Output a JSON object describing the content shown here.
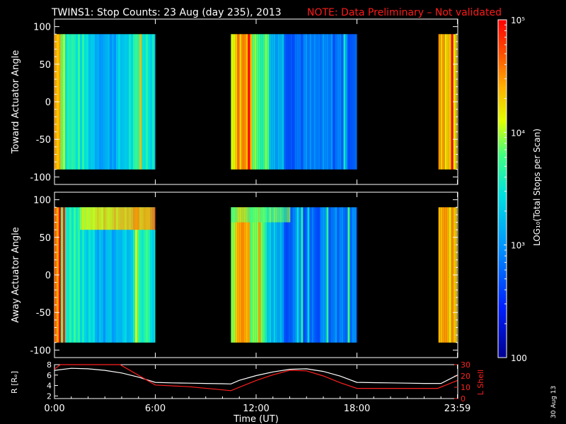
{
  "header": {
    "title": "TWINS1: Stop Counts: 23 Aug (day 235), 2013",
    "note": "NOTE: Data Preliminary – Not validated",
    "note_color": "#ff1a1a"
  },
  "footer_stamp": "30 Aug 13",
  "chart_data": [
    {
      "type": "heatmap",
      "panel": "top",
      "ylabel": "Toward Actuator Angle",
      "ylim": [
        -110,
        110
      ],
      "yticks": [
        100,
        50,
        0,
        -50,
        -100
      ],
      "xlim_hours": [
        0,
        24
      ],
      "data_yrange": [
        -90,
        90
      ],
      "data_segments_hours": [
        [
          0.0,
          6.0
        ],
        [
          10.5,
          18.0
        ],
        [
          22.85,
          23.95
        ]
      ],
      "intensity_note": "high counts near segment edges, lower (blue) counts mid-segment"
    },
    {
      "type": "heatmap",
      "panel": "middle",
      "ylabel": "Away Actuator Angle",
      "ylim": [
        -110,
        110
      ],
      "yticks": [
        100,
        50,
        0,
        -50,
        -100
      ],
      "xlim_hours": [
        0,
        24
      ],
      "data_yrange": [
        -90,
        90
      ],
      "data_segments_hours": [
        [
          0.0,
          6.0
        ],
        [
          10.5,
          18.0
        ],
        [
          22.85,
          23.95
        ]
      ],
      "hot_band": {
        "angle_min": 60,
        "angle_max": 90,
        "hours": [
          1.5,
          6.0
        ]
      }
    },
    {
      "type": "line",
      "panel": "bottom",
      "xlabel": "Time (UT)",
      "xtick_labels": [
        "0:00",
        "6:00",
        "12:00",
        "18:00",
        "23:59"
      ],
      "xtick_hours": [
        0,
        6,
        12,
        18,
        23.98
      ],
      "left_axis": {
        "label": "R [Rₑ]",
        "ylim": [
          1.5,
          8
        ],
        "yticks": [
          2,
          4,
          6,
          8
        ]
      },
      "right_axis": {
        "label": "L Shell",
        "ylim": [
          0,
          30
        ],
        "yticks": [
          0,
          10,
          20,
          30
        ],
        "color": "#ff2020"
      },
      "series": [
        {
          "axis": "left",
          "color": "#ffffff",
          "x": [
            0,
            1,
            2,
            3,
            4,
            5,
            6,
            7,
            8,
            9,
            10,
            10.5,
            11,
            12,
            13,
            14,
            15,
            16,
            17,
            18,
            19,
            20,
            21,
            22,
            23,
            23.98
          ],
          "y": [
            6.9,
            7.3,
            7.2,
            6.9,
            6.4,
            5.6,
            4.6,
            4.5,
            4.45,
            4.4,
            4.35,
            4.3,
            5.0,
            5.9,
            6.6,
            7.1,
            7.2,
            6.7,
            5.8,
            4.6,
            4.55,
            4.5,
            4.45,
            4.4,
            4.4,
            6.0
          ]
        },
        {
          "axis": "right",
          "color": "#ff2020",
          "x": [
            0,
            0.35,
            3.9,
            6.0,
            8.0,
            10.5,
            12.0,
            13.0,
            14.0,
            15.0,
            16.0,
            17.0,
            18.0,
            20.0,
            22.8,
            23.98
          ],
          "y": [
            26,
            30,
            30,
            12,
            10.5,
            7,
            16,
            21,
            25,
            24.5,
            20,
            14,
            9,
            9,
            9,
            16
          ]
        }
      ]
    }
  ],
  "colorbar": {
    "label": "LOG₁₀(Total Stops per Scan)",
    "tick_labels": [
      "10⁵",
      "10⁴",
      "10³",
      "100"
    ],
    "tick_values": [
      100000,
      10000,
      1000,
      100
    ],
    "scale": "log",
    "range": [
      100,
      100000
    ]
  }
}
